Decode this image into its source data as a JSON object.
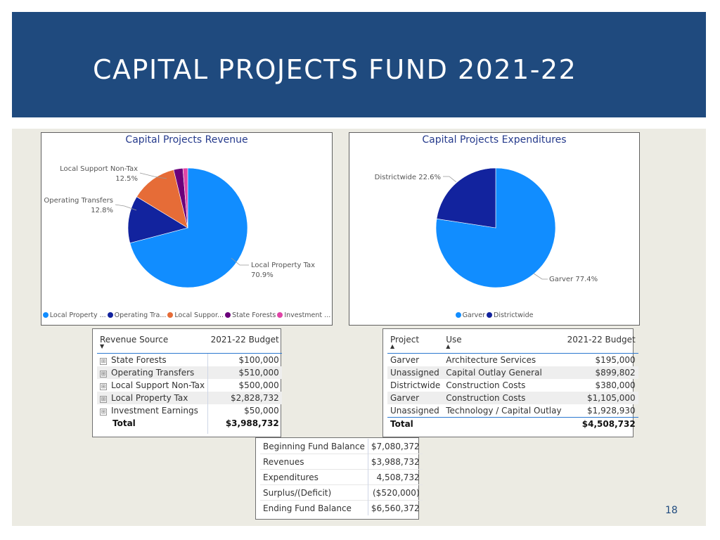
{
  "slide": {
    "title": "CAPITAL PROJECTS FUND 2021-22",
    "page_number": "18",
    "colors": {
      "banner": "#1f4a7e",
      "background": "#ecebe3"
    }
  },
  "chart_data": [
    {
      "type": "pie",
      "title": "Capital Projects Revenue",
      "slices": [
        {
          "name": "Local Property ...",
          "percent": 70.9,
          "color": "#118dff",
          "label": "Local Property Tax",
          "value_label": "70.9%"
        },
        {
          "name": "Operating Tra...",
          "percent": 12.8,
          "color": "#12239e",
          "label": "Operating Transfers",
          "value_label": "12.8%"
        },
        {
          "name": "Local Suppor...",
          "percent": 12.5,
          "color": "#e66c37",
          "label": "Local Support Non-Tax",
          "value_label": "12.5%"
        },
        {
          "name": "State Forests",
          "percent": 2.5,
          "color": "#6b007b",
          "label": "",
          "value_label": ""
        },
        {
          "name": "Investment ...",
          "percent": 1.3,
          "color": "#e044a7",
          "label": "",
          "value_label": ""
        }
      ],
      "legend_position": "bottom"
    },
    {
      "type": "pie",
      "title": "Capital Projects Expenditures",
      "slices": [
        {
          "name": "Garver",
          "percent": 77.4,
          "color": "#118dff",
          "label": "Garver 77.4%"
        },
        {
          "name": "Districtwide",
          "percent": 22.6,
          "color": "#12239e",
          "label": "Districtwide 22.6%"
        }
      ],
      "legend_position": "bottom"
    }
  ],
  "revenue_table": {
    "headers": [
      "Revenue Source",
      "2021-22 Budget"
    ],
    "rows": [
      {
        "source": "State Forests",
        "budget": "$100,000"
      },
      {
        "source": "Operating Transfers",
        "budget": "$510,000"
      },
      {
        "source": "Local Support Non-Tax",
        "budget": "$500,000"
      },
      {
        "source": "Local Property Tax",
        "budget": "$2,828,732"
      },
      {
        "source": "Investment Earnings",
        "budget": "$50,000"
      }
    ],
    "total": {
      "label": "Total",
      "value": "$3,988,732"
    },
    "expand_icon": "⊞",
    "sort_icon": "▼"
  },
  "expenditure_table": {
    "headers": [
      "Project",
      "Use",
      "2021-22 Budget"
    ],
    "rows": [
      {
        "project": "Garver",
        "use": "Architecture Services",
        "budget": "$195,000"
      },
      {
        "project": "Unassigned",
        "use": "Capital Outlay General",
        "budget": "$899,802"
      },
      {
        "project": "Districtwide",
        "use": "Construction Costs",
        "budget": "$380,000"
      },
      {
        "project": "Garver",
        "use": "Construction Costs",
        "budget": "$1,105,000"
      },
      {
        "project": "Unassigned",
        "use": "Technology / Capital Outlay",
        "budget": "$1,928,930"
      }
    ],
    "total": {
      "label": "Total",
      "value": "$4,508,732"
    },
    "sort_icon": "▲"
  },
  "summary_table": {
    "rows": [
      {
        "label": "Beginning Fund Balance",
        "value": "$7,080,372"
      },
      {
        "label": "Revenues",
        "value": "$3,988,732"
      },
      {
        "label": "Expenditures",
        "value": "4,508,732"
      },
      {
        "label": "Surplus/(Deficit)",
        "value": "($520,000)"
      },
      {
        "label": "Ending Fund Balance",
        "value": "$6,560,372"
      }
    ]
  }
}
